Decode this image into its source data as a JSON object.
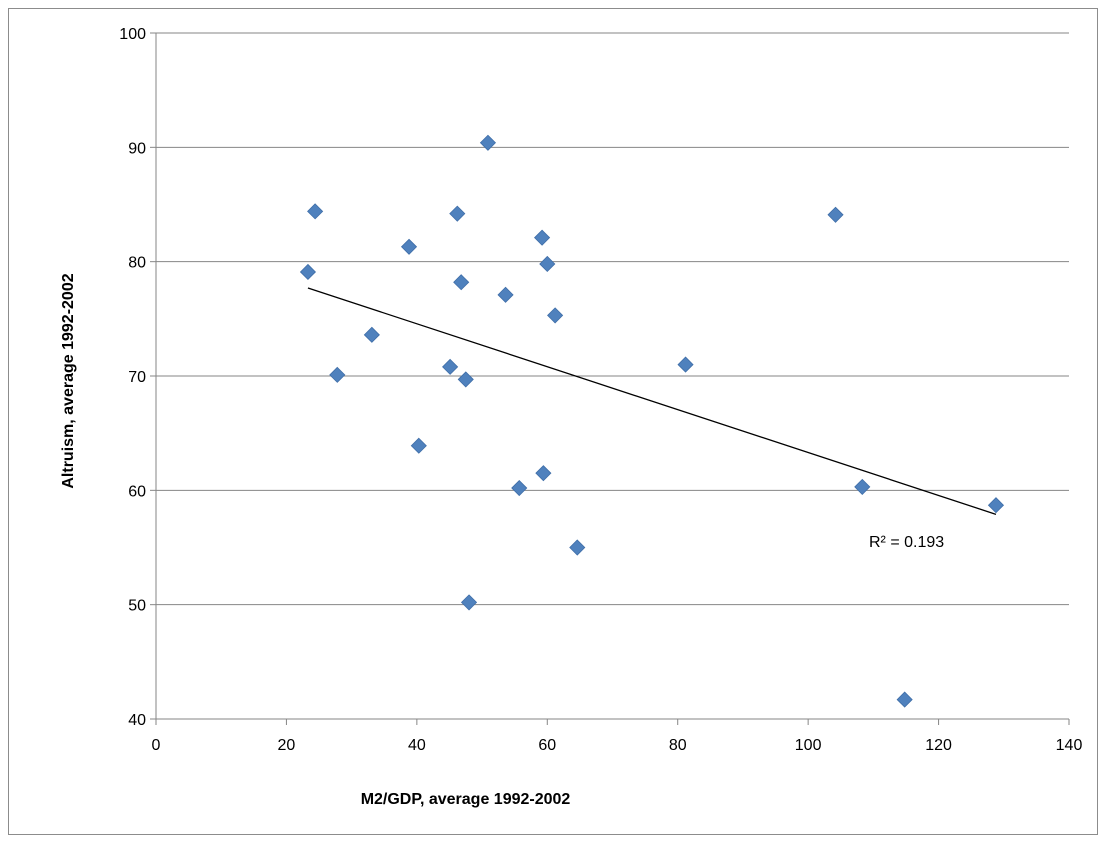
{
  "chart_data": {
    "type": "scatter",
    "title": "",
    "xlabel": "M2/GDP, average 1992-2002",
    "ylabel": "Altruism, average 1992-2002",
    "xlim": [
      0,
      140
    ],
    "ylim": [
      40,
      100
    ],
    "x_ticks": [
      0,
      20,
      40,
      60,
      80,
      100,
      120,
      140
    ],
    "y_ticks": [
      40,
      50,
      60,
      70,
      80,
      90,
      100
    ],
    "grid": "horizontal",
    "marker_color": "#4f81bd",
    "series": [
      {
        "points": [
          {
            "x": 23.3,
            "y": 79.1
          },
          {
            "x": 24.4,
            "y": 84.4
          },
          {
            "x": 27.8,
            "y": 70.1
          },
          {
            "x": 33.1,
            "y": 73.6
          },
          {
            "x": 38.8,
            "y": 81.3
          },
          {
            "x": 40.3,
            "y": 63.9
          },
          {
            "x": 45.1,
            "y": 70.8
          },
          {
            "x": 46.2,
            "y": 84.2
          },
          {
            "x": 46.8,
            "y": 78.2
          },
          {
            "x": 47.5,
            "y": 69.7
          },
          {
            "x": 48.0,
            "y": 50.2
          },
          {
            "x": 50.9,
            "y": 90.4
          },
          {
            "x": 53.6,
            "y": 77.1
          },
          {
            "x": 55.7,
            "y": 60.2
          },
          {
            "x": 59.2,
            "y": 82.1
          },
          {
            "x": 59.4,
            "y": 61.5
          },
          {
            "x": 60.0,
            "y": 79.8
          },
          {
            "x": 61.2,
            "y": 75.3
          },
          {
            "x": 64.6,
            "y": 55.0
          },
          {
            "x": 81.2,
            "y": 71.0
          },
          {
            "x": 104.2,
            "y": 84.1
          },
          {
            "x": 108.3,
            "y": 60.3
          },
          {
            "x": 114.8,
            "y": 41.7
          },
          {
            "x": 128.8,
            "y": 58.7
          }
        ]
      }
    ],
    "trendline": {
      "type": "linear",
      "from": {
        "x": 23.3,
        "y": 77.7
      },
      "to": {
        "x": 128.8,
        "y": 57.9
      },
      "label": "R² = 0.193"
    }
  }
}
